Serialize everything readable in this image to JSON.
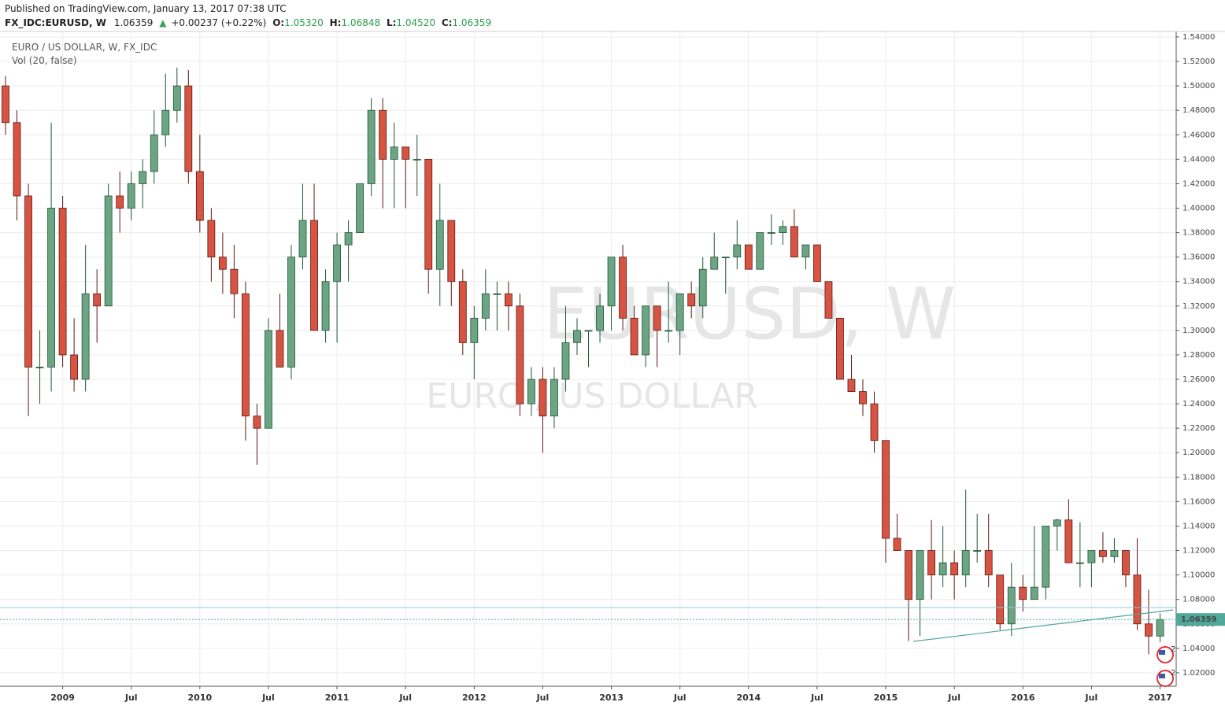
{
  "header": {
    "published": "Published on TradingView.com, January 13, 2017 07:38 UTC",
    "symbol": "FX_IDC:EURUSD, W",
    "price": "1.06359",
    "arrow": "▲",
    "change": "+0.00237 (+0.22%)",
    "o_label": "O:",
    "o_value": "1.05320",
    "h_label": "H:",
    "h_value": "1.06848",
    "l_label": "L:",
    "l_value": "1.04520",
    "c_label": "C:",
    "c_value": "1.06359"
  },
  "chart_data": {
    "type": "candlestick",
    "legend_title": "EURO / US DOLLAR, W, FX_IDC",
    "indicator": "Vol (20, false)",
    "watermark": "EURUSD, W",
    "watermark_sub": "EURO / US DOLLAR",
    "up_color": "#6ba583",
    "down_color": "#d75442",
    "grid": true,
    "last_price": 1.06359,
    "events": [
      {
        "label": "2"
      },
      {
        "label": "2"
      }
    ],
    "categories": [
      null,
      null,
      null,
      null,
      null,
      "2009",
      null,
      null,
      null,
      null,
      null,
      "Jul",
      null,
      null,
      null,
      null,
      null,
      "2010",
      null,
      null,
      null,
      null,
      null,
      "Jul",
      null,
      null,
      null,
      null,
      null,
      "2011",
      null,
      null,
      null,
      null,
      null,
      "Jul",
      null,
      null,
      null,
      null,
      null,
      "2012",
      null,
      null,
      null,
      null,
      null,
      "Jul",
      null,
      null,
      null,
      null,
      null,
      "2013",
      null,
      null,
      null,
      null,
      null,
      "Jul",
      null,
      null,
      null,
      null,
      null,
      "2014",
      null,
      null,
      null,
      null,
      null,
      "Jul",
      null,
      null,
      null,
      null,
      null,
      "2015",
      null,
      null,
      null,
      null,
      null,
      "Jul",
      null,
      null,
      null,
      null,
      null,
      "2016",
      null,
      null,
      null,
      null,
      null,
      "Jul",
      null,
      null,
      null,
      null,
      null,
      "2017"
    ],
    "open": [
      1.5,
      1.47,
      1.41,
      1.27,
      1.27,
      1.4,
      1.28,
      1.26,
      1.33,
      1.32,
      1.41,
      1.4,
      1.42,
      1.43,
      1.46,
      1.48,
      1.5,
      1.43,
      1.39,
      1.36,
      1.35,
      1.33,
      1.23,
      1.22,
      1.3,
      1.27,
      1.36,
      1.39,
      1.3,
      1.34,
      1.37,
      1.38,
      1.42,
      1.48,
      1.44,
      1.45,
      1.44,
      1.44,
      1.35,
      1.39,
      1.34,
      1.29,
      1.31,
      1.33,
      1.33,
      1.32,
      1.24,
      1.26,
      1.23,
      1.26,
      1.29,
      1.3,
      1.3,
      1.32,
      1.36,
      1.31,
      1.28,
      1.32,
      1.3,
      1.3,
      1.33,
      1.32,
      1.35,
      1.36,
      1.36,
      1.37,
      1.35,
      1.38,
      1.38,
      1.385,
      1.36,
      1.37,
      1.34,
      1.31,
      1.26,
      1.25,
      1.24,
      1.21,
      1.13,
      1.12,
      1.08,
      1.12,
      1.1,
      1.11,
      1.1,
      1.12,
      1.12,
      1.1,
      1.06,
      1.09,
      1.08,
      1.09,
      1.14,
      1.145,
      1.11,
      1.11,
      1.12,
      1.115,
      1.12,
      1.1,
      1.06,
      1.05
    ],
    "high": [
      1.508,
      1.48,
      1.42,
      1.3,
      1.47,
      1.41,
      1.31,
      1.37,
      1.35,
      1.42,
      1.43,
      1.43,
      1.44,
      1.48,
      1.51,
      1.515,
      1.513,
      1.46,
      1.4,
      1.38,
      1.37,
      1.34,
      1.24,
      1.31,
      1.33,
      1.37,
      1.42,
      1.42,
      1.35,
      1.38,
      1.39,
      1.42,
      1.49,
      1.49,
      1.47,
      1.45,
      1.46,
      1.44,
      1.42,
      1.39,
      1.35,
      1.32,
      1.35,
      1.34,
      1.34,
      1.33,
      1.27,
      1.27,
      1.27,
      1.32,
      1.31,
      1.3,
      1.33,
      1.36,
      1.37,
      1.32,
      1.32,
      1.32,
      1.34,
      1.33,
      1.34,
      1.36,
      1.38,
      1.36,
      1.39,
      1.37,
      1.38,
      1.395,
      1.39,
      1.399,
      1.37,
      1.37,
      1.34,
      1.31,
      1.28,
      1.26,
      1.25,
      1.21,
      1.15,
      1.12,
      1.12,
      1.145,
      1.14,
      1.12,
      1.17,
      1.15,
      1.15,
      1.1,
      1.11,
      1.1,
      1.14,
      1.14,
      1.146,
      1.162,
      1.143,
      1.12,
      1.135,
      1.13,
      1.12,
      1.13,
      1.088,
      1.0685
    ],
    "low": [
      1.46,
      1.39,
      1.23,
      1.24,
      1.25,
      1.27,
      1.25,
      1.25,
      1.29,
      1.32,
      1.38,
      1.39,
      1.4,
      1.42,
      1.45,
      1.47,
      1.42,
      1.38,
      1.34,
      1.33,
      1.31,
      1.21,
      1.19,
      1.22,
      1.27,
      1.26,
      1.35,
      1.3,
      1.29,
      1.29,
      1.34,
      1.38,
      1.41,
      1.4,
      1.4,
      1.4,
      1.41,
      1.33,
      1.32,
      1.32,
      1.28,
      1.26,
      1.3,
      1.3,
      1.3,
      1.23,
      1.23,
      1.2,
      1.22,
      1.25,
      1.28,
      1.27,
      1.29,
      1.3,
      1.3,
      1.28,
      1.27,
      1.27,
      1.29,
      1.28,
      1.31,
      1.31,
      1.35,
      1.33,
      1.35,
      1.35,
      1.35,
      1.37,
      1.37,
      1.36,
      1.35,
      1.34,
      1.31,
      1.26,
      1.25,
      1.23,
      1.2,
      1.11,
      1.12,
      1.046,
      1.05,
      1.08,
      1.09,
      1.08,
      1.09,
      1.11,
      1.09,
      1.055,
      1.05,
      1.07,
      1.08,
      1.08,
      1.12,
      1.11,
      1.09,
      1.09,
      1.11,
      1.11,
      1.09,
      1.055,
      1.035,
      1.0452
    ],
    "close": [
      1.47,
      1.41,
      1.27,
      1.27,
      1.4,
      1.28,
      1.26,
      1.33,
      1.32,
      1.41,
      1.4,
      1.42,
      1.43,
      1.46,
      1.48,
      1.5,
      1.43,
      1.39,
      1.36,
      1.35,
      1.33,
      1.23,
      1.22,
      1.3,
      1.27,
      1.36,
      1.39,
      1.3,
      1.34,
      1.37,
      1.38,
      1.42,
      1.48,
      1.44,
      1.45,
      1.44,
      1.44,
      1.35,
      1.39,
      1.34,
      1.29,
      1.31,
      1.33,
      1.33,
      1.32,
      1.24,
      1.26,
      1.23,
      1.26,
      1.29,
      1.3,
      1.3,
      1.32,
      1.36,
      1.31,
      1.28,
      1.32,
      1.3,
      1.3,
      1.33,
      1.32,
      1.35,
      1.36,
      1.36,
      1.37,
      1.35,
      1.38,
      1.38,
      1.385,
      1.36,
      1.37,
      1.34,
      1.31,
      1.26,
      1.25,
      1.24,
      1.21,
      1.13,
      1.12,
      1.08,
      1.12,
      1.1,
      1.11,
      1.1,
      1.12,
      1.12,
      1.1,
      1.06,
      1.09,
      1.08,
      1.09,
      1.14,
      1.145,
      1.11,
      1.11,
      1.12,
      1.115,
      1.12,
      1.1,
      1.06,
      1.05,
      1.0636
    ],
    "ylim": [
      1.009,
      1.5445
    ],
    "yticks": [
      {
        "value": 1.02,
        "label": "1.02000"
      },
      {
        "value": 1.04,
        "label": "1.04000"
      },
      {
        "value": 1.06,
        "label": "1.06000"
      },
      {
        "value": 1.08,
        "label": "1.08000"
      },
      {
        "value": 1.1,
        "label": "1.10000"
      },
      {
        "value": 1.12,
        "label": "1.12000"
      },
      {
        "value": 1.14,
        "label": "1.14000"
      },
      {
        "value": 1.16,
        "label": "1.16000"
      },
      {
        "value": 1.18,
        "label": "1.18000"
      },
      {
        "value": 1.2,
        "label": "1.20000"
      },
      {
        "value": 1.22,
        "label": "1.22000"
      },
      {
        "value": 1.24,
        "label": "1.24000"
      },
      {
        "value": 1.26,
        "label": "1.26000"
      },
      {
        "value": 1.28,
        "label": "1.28000"
      },
      {
        "value": 1.3,
        "label": "1.30000"
      },
      {
        "value": 1.32,
        "label": "1.32000"
      },
      {
        "value": 1.34,
        "label": "1.34000"
      },
      {
        "value": 1.36,
        "label": "1.36000"
      },
      {
        "value": 1.38,
        "label": "1.38000"
      },
      {
        "value": 1.4,
        "label": "1.40000"
      },
      {
        "value": 1.42,
        "label": "1.42000"
      },
      {
        "value": 1.44,
        "label": "1.44000"
      },
      {
        "value": 1.46,
        "label": "1.46000"
      },
      {
        "value": 1.48,
        "label": "1.48000"
      },
      {
        "value": 1.5,
        "label": "1.50000"
      },
      {
        "value": 1.52,
        "label": "1.52000"
      },
      {
        "value": 1.54,
        "label": "1.54000"
      }
    ]
  }
}
